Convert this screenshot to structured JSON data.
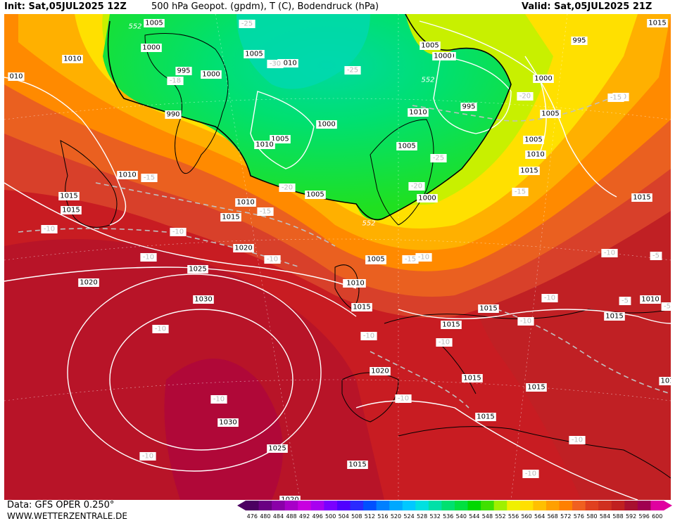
{
  "header": {
    "init": "Init: Sat,05JUL2025 12Z",
    "title": "500 hPa Geopot. (gpdm), T (C), Bodendruck (hPa)",
    "valid": "Valid: Sat,05JUL2025 21Z"
  },
  "footer": {
    "data_source": "Data: GFS OPER 0.250°",
    "website": "WWW.WETTERZENTRALE.DE"
  },
  "colorbar": {
    "labels": [
      "476",
      "480",
      "484",
      "488",
      "492",
      "496",
      "500",
      "504",
      "508",
      "512",
      "516",
      "520",
      "524",
      "528",
      "532",
      "536",
      "540",
      "544",
      "548",
      "552",
      "556",
      "560",
      "564",
      "568",
      "572",
      "576",
      "580",
      "584",
      "588",
      "592",
      "596",
      "600"
    ],
    "colors": [
      "#4b0061",
      "#6a0082",
      "#8a00a8",
      "#a800c8",
      "#c800e0",
      "#a800f0",
      "#7a00ff",
      "#5000ff",
      "#2a2aff",
      "#0050ff",
      "#0080ff",
      "#00a8ff",
      "#00c8ff",
      "#00e0e0",
      "#00e0a8",
      "#00e070",
      "#00e040",
      "#00d800",
      "#40e000",
      "#a0f000",
      "#f0f000",
      "#ffe000",
      "#ffc000",
      "#ffa000",
      "#ff8000",
      "#f06020",
      "#e04020",
      "#d03020",
      "#c02020",
      "#a81030",
      "#a00050",
      "#e000a0"
    ]
  },
  "pressure_labels": [
    {
      "text": "1005"
    },
    {
      "text": "1000"
    },
    {
      "text": "995"
    },
    {
      "text": "1000"
    },
    {
      "text": "1005"
    },
    {
      "text": "1010"
    },
    {
      "text": "1000"
    },
    {
      "text": "1010"
    },
    {
      "text": "990"
    },
    {
      "text": "1005"
    },
    {
      "text": "1000"
    },
    {
      "text": "1005"
    },
    {
      "text": "1010"
    },
    {
      "text": "1015"
    },
    {
      "text": "1010"
    },
    {
      "text": "1015"
    },
    {
      "text": "1020"
    },
    {
      "text": "1025"
    },
    {
      "text": "1030"
    },
    {
      "text": "1020"
    },
    {
      "text": "1010"
    },
    {
      "text": "1005"
    },
    {
      "text": "1005"
    },
    {
      "text": "1010"
    },
    {
      "text": "1015"
    },
    {
      "text": "1000"
    },
    {
      "text": "1005"
    },
    {
      "text": "1000"
    },
    {
      "text": "1010"
    },
    {
      "text": "1005"
    },
    {
      "text": "995"
    },
    {
      "text": "1000"
    },
    {
      "text": "1005"
    },
    {
      "text": "1010"
    },
    {
      "text": "1015"
    },
    {
      "text": "995"
    },
    {
      "text": "1005"
    },
    {
      "text": "1015"
    },
    {
      "text": "1015"
    },
    {
      "text": "1010"
    },
    {
      "text": "1015"
    },
    {
      "text": "1015"
    },
    {
      "text": "1020"
    },
    {
      "text": "1015"
    },
    {
      "text": "1015"
    },
    {
      "text": "1015"
    },
    {
      "text": "1030"
    },
    {
      "text": "1025"
    },
    {
      "text": "1015"
    },
    {
      "text": "1020"
    },
    {
      "text": "1010"
    },
    {
      "text": "1015"
    },
    {
      "text": "1015"
    },
    {
      "text": "010"
    },
    {
      "text": "101"
    }
  ],
  "temperature_labels": [
    {
      "text": "-25"
    },
    {
      "text": "-30"
    },
    {
      "text": "-25"
    },
    {
      "text": "-18"
    },
    {
      "text": "-20"
    },
    {
      "text": "-25"
    },
    {
      "text": "-20"
    },
    {
      "text": "-20"
    },
    {
      "text": "-15"
    },
    {
      "text": "-15"
    },
    {
      "text": "-10"
    },
    {
      "text": "-10"
    },
    {
      "text": "-10"
    },
    {
      "text": "-10"
    },
    {
      "text": "-15"
    },
    {
      "text": "-15"
    },
    {
      "text": "-10"
    },
    {
      "text": "-10"
    },
    {
      "text": "-10"
    },
    {
      "text": "-10"
    },
    {
      "text": "-10"
    },
    {
      "text": "-10"
    },
    {
      "text": "-10"
    },
    {
      "text": "-10"
    },
    {
      "text": "-10"
    },
    {
      "text": "-10"
    },
    {
      "text": "-5"
    },
    {
      "text": "-5"
    },
    {
      "text": "-5"
    },
    {
      "text": "-10"
    },
    {
      "text": "-15"
    },
    {
      "text": "-10"
    },
    {
      "text": "-10"
    }
  ],
  "geopotential_labels": [
    {
      "text": "552"
    },
    {
      "text": "552"
    },
    {
      "text": "552"
    }
  ]
}
